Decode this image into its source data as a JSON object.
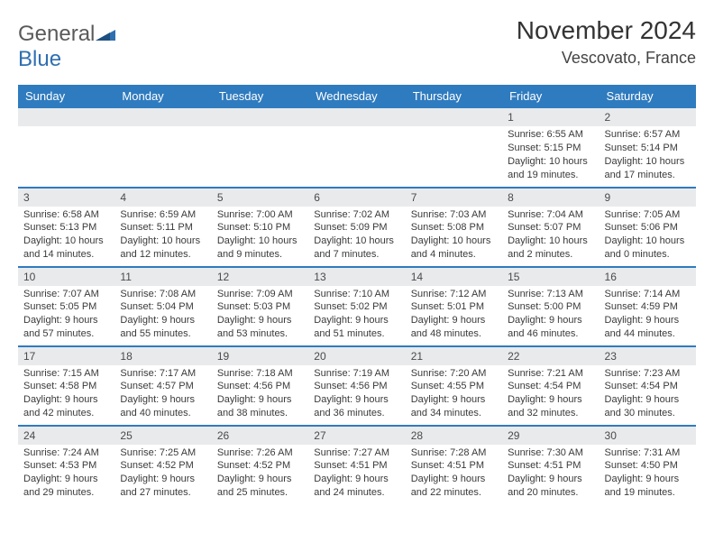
{
  "logo": {
    "word1": "General",
    "word2": "Blue"
  },
  "header": {
    "title": "November 2024",
    "location": "Vescovato, France"
  },
  "colors": {
    "header_bg": "#2f7bbf",
    "header_text": "#ffffff",
    "daynum_bg": "#e9eaec",
    "cell_divider": "#2f7bbf",
    "text": "#3a3a3a",
    "logo_gray": "#5a5a5a",
    "logo_blue": "#2f6fb0"
  },
  "weekdays": [
    "Sunday",
    "Monday",
    "Tuesday",
    "Wednesday",
    "Thursday",
    "Friday",
    "Saturday"
  ],
  "weeks": [
    [
      {
        "day": "",
        "lines": [
          "",
          "",
          "",
          ""
        ]
      },
      {
        "day": "",
        "lines": [
          "",
          "",
          "",
          ""
        ]
      },
      {
        "day": "",
        "lines": [
          "",
          "",
          "",
          ""
        ]
      },
      {
        "day": "",
        "lines": [
          "",
          "",
          "",
          ""
        ]
      },
      {
        "day": "",
        "lines": [
          "",
          "",
          "",
          ""
        ]
      },
      {
        "day": "1",
        "lines": [
          "Sunrise: 6:55 AM",
          "Sunset: 5:15 PM",
          "Daylight: 10 hours",
          "and 19 minutes."
        ]
      },
      {
        "day": "2",
        "lines": [
          "Sunrise: 6:57 AM",
          "Sunset: 5:14 PM",
          "Daylight: 10 hours",
          "and 17 minutes."
        ]
      }
    ],
    [
      {
        "day": "3",
        "lines": [
          "Sunrise: 6:58 AM",
          "Sunset: 5:13 PM",
          "Daylight: 10 hours",
          "and 14 minutes."
        ]
      },
      {
        "day": "4",
        "lines": [
          "Sunrise: 6:59 AM",
          "Sunset: 5:11 PM",
          "Daylight: 10 hours",
          "and 12 minutes."
        ]
      },
      {
        "day": "5",
        "lines": [
          "Sunrise: 7:00 AM",
          "Sunset: 5:10 PM",
          "Daylight: 10 hours",
          "and 9 minutes."
        ]
      },
      {
        "day": "6",
        "lines": [
          "Sunrise: 7:02 AM",
          "Sunset: 5:09 PM",
          "Daylight: 10 hours",
          "and 7 minutes."
        ]
      },
      {
        "day": "7",
        "lines": [
          "Sunrise: 7:03 AM",
          "Sunset: 5:08 PM",
          "Daylight: 10 hours",
          "and 4 minutes."
        ]
      },
      {
        "day": "8",
        "lines": [
          "Sunrise: 7:04 AM",
          "Sunset: 5:07 PM",
          "Daylight: 10 hours",
          "and 2 minutes."
        ]
      },
      {
        "day": "9",
        "lines": [
          "Sunrise: 7:05 AM",
          "Sunset: 5:06 PM",
          "Daylight: 10 hours",
          "and 0 minutes."
        ]
      }
    ],
    [
      {
        "day": "10",
        "lines": [
          "Sunrise: 7:07 AM",
          "Sunset: 5:05 PM",
          "Daylight: 9 hours",
          "and 57 minutes."
        ]
      },
      {
        "day": "11",
        "lines": [
          "Sunrise: 7:08 AM",
          "Sunset: 5:04 PM",
          "Daylight: 9 hours",
          "and 55 minutes."
        ]
      },
      {
        "day": "12",
        "lines": [
          "Sunrise: 7:09 AM",
          "Sunset: 5:03 PM",
          "Daylight: 9 hours",
          "and 53 minutes."
        ]
      },
      {
        "day": "13",
        "lines": [
          "Sunrise: 7:10 AM",
          "Sunset: 5:02 PM",
          "Daylight: 9 hours",
          "and 51 minutes."
        ]
      },
      {
        "day": "14",
        "lines": [
          "Sunrise: 7:12 AM",
          "Sunset: 5:01 PM",
          "Daylight: 9 hours",
          "and 48 minutes."
        ]
      },
      {
        "day": "15",
        "lines": [
          "Sunrise: 7:13 AM",
          "Sunset: 5:00 PM",
          "Daylight: 9 hours",
          "and 46 minutes."
        ]
      },
      {
        "day": "16",
        "lines": [
          "Sunrise: 7:14 AM",
          "Sunset: 4:59 PM",
          "Daylight: 9 hours",
          "and 44 minutes."
        ]
      }
    ],
    [
      {
        "day": "17",
        "lines": [
          "Sunrise: 7:15 AM",
          "Sunset: 4:58 PM",
          "Daylight: 9 hours",
          "and 42 minutes."
        ]
      },
      {
        "day": "18",
        "lines": [
          "Sunrise: 7:17 AM",
          "Sunset: 4:57 PM",
          "Daylight: 9 hours",
          "and 40 minutes."
        ]
      },
      {
        "day": "19",
        "lines": [
          "Sunrise: 7:18 AM",
          "Sunset: 4:56 PM",
          "Daylight: 9 hours",
          "and 38 minutes."
        ]
      },
      {
        "day": "20",
        "lines": [
          "Sunrise: 7:19 AM",
          "Sunset: 4:56 PM",
          "Daylight: 9 hours",
          "and 36 minutes."
        ]
      },
      {
        "day": "21",
        "lines": [
          "Sunrise: 7:20 AM",
          "Sunset: 4:55 PM",
          "Daylight: 9 hours",
          "and 34 minutes."
        ]
      },
      {
        "day": "22",
        "lines": [
          "Sunrise: 7:21 AM",
          "Sunset: 4:54 PM",
          "Daylight: 9 hours",
          "and 32 minutes."
        ]
      },
      {
        "day": "23",
        "lines": [
          "Sunrise: 7:23 AM",
          "Sunset: 4:54 PM",
          "Daylight: 9 hours",
          "and 30 minutes."
        ]
      }
    ],
    [
      {
        "day": "24",
        "lines": [
          "Sunrise: 7:24 AM",
          "Sunset: 4:53 PM",
          "Daylight: 9 hours",
          "and 29 minutes."
        ]
      },
      {
        "day": "25",
        "lines": [
          "Sunrise: 7:25 AM",
          "Sunset: 4:52 PM",
          "Daylight: 9 hours",
          "and 27 minutes."
        ]
      },
      {
        "day": "26",
        "lines": [
          "Sunrise: 7:26 AM",
          "Sunset: 4:52 PM",
          "Daylight: 9 hours",
          "and 25 minutes."
        ]
      },
      {
        "day": "27",
        "lines": [
          "Sunrise: 7:27 AM",
          "Sunset: 4:51 PM",
          "Daylight: 9 hours",
          "and 24 minutes."
        ]
      },
      {
        "day": "28",
        "lines": [
          "Sunrise: 7:28 AM",
          "Sunset: 4:51 PM",
          "Daylight: 9 hours",
          "and 22 minutes."
        ]
      },
      {
        "day": "29",
        "lines": [
          "Sunrise: 7:30 AM",
          "Sunset: 4:51 PM",
          "Daylight: 9 hours",
          "and 20 minutes."
        ]
      },
      {
        "day": "30",
        "lines": [
          "Sunrise: 7:31 AM",
          "Sunset: 4:50 PM",
          "Daylight: 9 hours",
          "and 19 minutes."
        ]
      }
    ]
  ]
}
